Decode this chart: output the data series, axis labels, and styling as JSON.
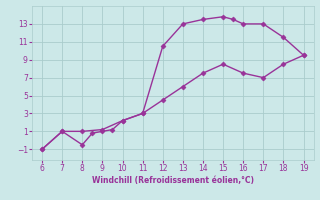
{
  "xlabel": "Windchill (Refroidissement éolien,°C)",
  "xlim": [
    5.5,
    19.5
  ],
  "ylim": [
    -2.2,
    15.0
  ],
  "xticks": [
    6,
    7,
    8,
    9,
    10,
    11,
    12,
    13,
    14,
    15,
    16,
    17,
    18,
    19
  ],
  "yticks": [
    -1,
    1,
    3,
    5,
    7,
    9,
    11,
    13
  ],
  "line1_x": [
    6,
    7,
    8,
    8.5,
    9,
    9.5,
    10,
    11,
    12,
    13,
    14,
    15,
    15.5,
    16,
    17,
    18,
    19
  ],
  "line1_y": [
    -1,
    1,
    -0.5,
    0.8,
    1.0,
    1.2,
    2.2,
    3.0,
    10.5,
    13.0,
    13.5,
    13.8,
    13.5,
    13.0,
    13.0,
    11.5,
    9.5
  ],
  "line2_x": [
    6,
    7,
    8,
    9,
    10,
    11,
    12,
    13,
    14,
    15,
    16,
    17,
    18,
    19
  ],
  "line2_y": [
    -1,
    1,
    1.0,
    1.2,
    2.2,
    3.0,
    4.5,
    6.0,
    7.5,
    8.5,
    7.5,
    7.0,
    8.5,
    9.5
  ],
  "line_color": "#993399",
  "bg_color": "#cce8e8",
  "grid_color": "#aacccc",
  "tick_color": "#993399",
  "label_color": "#993399",
  "marker": "D",
  "markersize": 2.5,
  "linewidth": 1.0
}
